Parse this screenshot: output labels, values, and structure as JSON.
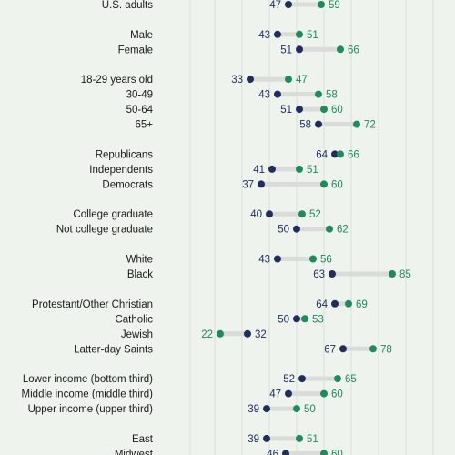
{
  "colors": {
    "background": "#eef3ee",
    "gridline": "#d8e2d8",
    "connector": "#d9dcd9",
    "series_a": "#1f2e5c",
    "series_b": "#1f8a5b",
    "label_text": "#1a1a1a"
  },
  "chart_data": {
    "type": "dot-plot",
    "title": "",
    "xlabel": "",
    "ylabel": "",
    "x_range": [
      0,
      100
    ],
    "grid": true,
    "series": [
      {
        "values": [
          47,
          43,
          51,
          33,
          43,
          51,
          58,
          64,
          41,
          37,
          40,
          50,
          43,
          63,
          64,
          50,
          32,
          67,
          52,
          47,
          39,
          39,
          46
        ]
      },
      {
        "values": [
          59,
          51,
          66,
          47,
          58,
          60,
          72,
          66,
          51,
          60,
          52,
          62,
          56,
          85,
          69,
          53,
          22,
          78,
          65,
          60,
          50,
          51,
          60
        ]
      }
    ],
    "groups": [
      {
        "categories": [
          "U.S. adults"
        ]
      },
      {
        "categories": [
          "Male",
          "Female"
        ]
      },
      {
        "categories": [
          "18-29 years old",
          "30-49",
          "50-64",
          "65+"
        ]
      },
      {
        "categories": [
          "Republicans",
          "Independents",
          "Democrats"
        ]
      },
      {
        "categories": [
          "College graduate",
          "Not college graduate"
        ]
      },
      {
        "categories": [
          "White",
          "Black"
        ]
      },
      {
        "categories": [
          "Protestant/Other Christian",
          "Catholic",
          "Jewish",
          "Latter-day Saints"
        ]
      },
      {
        "categories": [
          "Lower income (bottom third)",
          "Middle income (middle third)",
          "Upper income (upper third)"
        ]
      },
      {
        "categories": [
          "East",
          "Midwest"
        ]
      }
    ]
  }
}
